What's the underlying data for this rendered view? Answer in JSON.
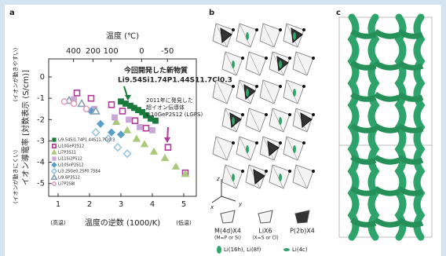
{
  "panel_labels": [
    "a",
    "b",
    "c"
  ],
  "chart_data": {
    "type": "scatter",
    "x_label": "温度の逆数 (1000/K)",
    "y_label": "イオン導電率 [対数表示 (S/cm)]",
    "x2_label": "温度 (℃)",
    "y_top_note": "(イオンが動きやすい)",
    "y_bottom_note": "(イオンが動きにくい)",
    "x_left_note": "(高温)",
    "x_right_note": "(低温)",
    "xlim": [
      0.7,
      5.4
    ],
    "ylim": [
      -5.6,
      0.85
    ],
    "xticks": [
      1,
      2,
      3,
      4,
      5
    ],
    "yticks": [
      0,
      -1,
      -2,
      -3,
      -4,
      -5
    ],
    "x2ticks": [
      {
        "value": 1.49,
        "label": "400"
      },
      {
        "value": 2.11,
        "label": "200"
      },
      {
        "value": 2.68,
        "label": "100"
      },
      {
        "value": 3.66,
        "label": "0"
      },
      {
        "value": 4.48,
        "label": "-50"
      }
    ],
    "legend": "lower left",
    "annotations": [
      {
        "lines": [
          "今回開発した新物質",
          "Li9.54Si1.74P1.44S11.7Cl0.3"
        ],
        "color": "#1a7a3c"
      },
      {
        "lines": [
          "2011年に発見した",
          "超イオン伝導体",
          "Li10GeP2S12 (LGPS)"
        ],
        "color": "#b0399a"
      }
    ],
    "series": [
      {
        "name": "Li9.54Si1.74P1.44S11.7Cl0.3",
        "color": "#1a7a3c",
        "marker": "square",
        "filled": true,
        "x": [
          3.0,
          3.15,
          3.3,
          3.42,
          3.55,
          3.68,
          3.8,
          3.95,
          4.1
        ],
        "values": [
          -1.15,
          -1.25,
          -1.35,
          -1.45,
          -1.55,
          -1.65,
          -1.8,
          -1.95,
          -2.05
        ]
      },
      {
        "name": "Li10GeP2S12",
        "color": "#b0399a",
        "marker": "square",
        "filled": false,
        "x": [
          1.6,
          2.05,
          2.7,
          3.05,
          3.45,
          3.8,
          4.5,
          5.05
        ],
        "values": [
          -0.75,
          -1.0,
          -1.3,
          -1.6,
          -2.05,
          -2.4,
          -3.3,
          -4.5
        ]
      },
      {
        "name": "Li7P3S11",
        "color": "#a8c87a",
        "marker": "triangle",
        "filled": true,
        "x": [
          2.85,
          3.2,
          3.5,
          3.75,
          4.05,
          4.4,
          4.75,
          5.05
        ],
        "values": [
          -2.1,
          -2.5,
          -2.9,
          -3.15,
          -3.5,
          -3.8,
          -4.2,
          -4.55
        ]
      },
      {
        "name": "Li11Si2PS12",
        "color": "#c9a6d6",
        "marker": "square",
        "filled": true,
        "x": [
          1.5,
          2.15,
          2.8,
          3.25,
          3.6,
          4.0
        ],
        "values": [
          -1.05,
          -1.5,
          -1.9,
          -2.0,
          -2.35,
          -2.5
        ]
      },
      {
        "name": "Li10SnP2S12",
        "color": "#5aa0c8",
        "marker": "diamond",
        "filled": true,
        "x": [
          2.05,
          2.35,
          2.7,
          3.0
        ],
        "values": [
          -1.6,
          -2.2,
          -2.6,
          -2.7
        ]
      },
      {
        "name": "Li3.25Ge0.25P0.75S4",
        "color": "#9cc6e0",
        "marker": "diamond",
        "filled": false,
        "x": [
          2.2,
          2.6,
          2.9,
          3.2
        ],
        "values": [
          -2.6,
          -2.9,
          -3.3,
          -3.6
        ]
      },
      {
        "name": "Li9.6P3S12",
        "color": "#8aa0b0",
        "marker": "triangle",
        "filled": false,
        "x": [
          1.35,
          1.75,
          2.2
        ],
        "values": [
          -1.1,
          -1.25,
          -1.6
        ]
      },
      {
        "name": "Li7P2S8I",
        "color": "#e0a0c0",
        "marker": "circle",
        "filled": false,
        "x": [
          1.2,
          1.5,
          1.9
        ],
        "values": [
          -1.15,
          -1.25,
          -1.5
        ]
      }
    ]
  },
  "panel_b": {
    "axes": [
      "z",
      "x",
      "y"
    ],
    "legend": [
      [
        "M(4d)X4",
        "(M=P or Si)"
      ],
      [
        "LiX6",
        "(X=S or Cl)"
      ],
      [
        "P(2b)X4",
        ""
      ]
    ],
    "sites": [
      "Li(16h), Li(8f)",
      "Li(4c)"
    ]
  }
}
